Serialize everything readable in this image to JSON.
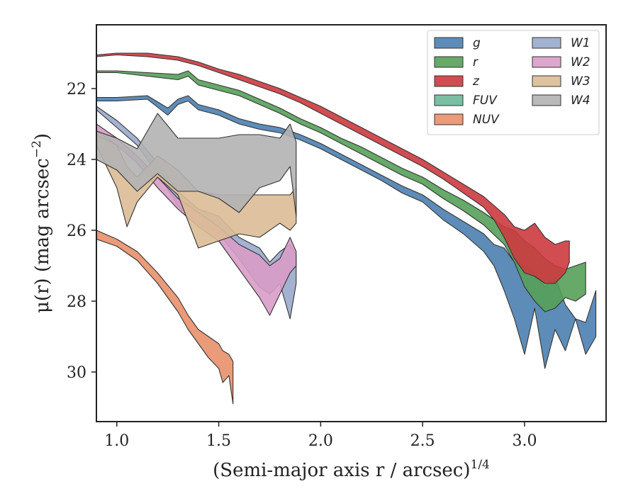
{
  "chart_data": {
    "type": "area",
    "title": "",
    "xlabel": "(Semi-major axis r / arcsec)",
    "xlabel_sup": "1/4",
    "ylabel": "μ(r) (mag arcsec",
    "ylabel_sup": "−2",
    "ylabel_tail": ")",
    "xlim": [
      0.9,
      3.4
    ],
    "ylim": [
      31.4,
      20.2
    ],
    "y_inverted": true,
    "grid": false,
    "legend": "top-right",
    "xticks": [
      1.0,
      1.5,
      2.0,
      2.5,
      3.0
    ],
    "xtick_labels": [
      "1.0",
      "1.5",
      "2.0",
      "2.5",
      "3.0"
    ],
    "yticks": [
      22,
      24,
      26,
      28,
      30
    ],
    "ytick_labels": [
      "22",
      "24",
      "26",
      "28",
      "30"
    ],
    "series": [
      {
        "name": "g",
        "color": "#4c7fb0",
        "x": [
          0.9,
          1.0,
          1.15,
          1.25,
          1.3,
          1.35,
          1.4,
          1.5,
          1.6,
          1.7,
          1.8,
          1.9,
          2.0,
          2.1,
          2.2,
          2.3,
          2.4,
          2.5,
          2.6,
          2.7,
          2.8,
          2.85,
          2.9,
          2.95,
          3.0,
          3.05,
          3.1,
          3.15,
          3.2,
          3.25,
          3.3,
          3.35
        ],
        "y1": [
          22.25,
          22.25,
          22.2,
          22.55,
          22.3,
          22.2,
          22.45,
          22.6,
          22.85,
          23.0,
          23.1,
          23.3,
          23.55,
          23.85,
          24.15,
          24.45,
          24.75,
          25.0,
          25.4,
          25.75,
          26.1,
          26.4,
          26.5,
          26.9,
          27.0,
          27.2,
          27.6,
          27.3,
          28.1,
          28.5,
          28.6,
          27.7
        ],
        "y2": [
          22.35,
          22.35,
          22.3,
          22.75,
          22.45,
          22.35,
          22.6,
          22.75,
          23.0,
          23.15,
          23.25,
          23.45,
          23.7,
          24.0,
          24.3,
          24.6,
          24.95,
          25.2,
          25.7,
          26.1,
          26.6,
          27.0,
          27.7,
          28.5,
          29.5,
          28.2,
          29.9,
          28.8,
          29.4,
          28.5,
          29.5,
          29.0
        ]
      },
      {
        "name": "r",
        "color": "#55a059",
        "x": [
          0.9,
          1.0,
          1.15,
          1.3,
          1.35,
          1.4,
          1.5,
          1.6,
          1.7,
          1.8,
          1.9,
          2.0,
          2.1,
          2.2,
          2.3,
          2.4,
          2.5,
          2.6,
          2.7,
          2.8,
          2.9,
          2.95,
          3.0,
          3.05,
          3.1,
          3.15,
          3.2,
          3.25,
          3.3
        ],
        "y1": [
          21.5,
          21.5,
          21.55,
          21.6,
          21.5,
          21.75,
          21.9,
          22.05,
          22.3,
          22.55,
          22.85,
          23.1,
          23.4,
          23.65,
          23.95,
          24.25,
          24.5,
          24.85,
          25.15,
          25.5,
          25.9,
          26.0,
          26.3,
          26.5,
          26.8,
          27.0,
          27.1,
          27.0,
          26.9
        ],
        "y2": [
          21.55,
          21.55,
          21.65,
          21.75,
          21.65,
          21.9,
          22.05,
          22.2,
          22.45,
          22.7,
          23.0,
          23.25,
          23.55,
          23.85,
          24.15,
          24.45,
          24.7,
          25.1,
          25.45,
          25.85,
          26.4,
          26.9,
          27.6,
          28.0,
          28.3,
          28.2,
          27.9,
          28.0,
          27.8
        ]
      },
      {
        "name": "z",
        "color": "#cc3a3f",
        "x": [
          0.9,
          1.0,
          1.15,
          1.3,
          1.4,
          1.5,
          1.6,
          1.7,
          1.8,
          1.9,
          2.0,
          2.1,
          2.2,
          2.3,
          2.4,
          2.5,
          2.6,
          2.7,
          2.8,
          2.85,
          2.9,
          2.95,
          3.0,
          3.05,
          3.1,
          3.15,
          3.2,
          3.22
        ],
        "y1": [
          21.05,
          21.0,
          21.0,
          21.1,
          21.25,
          21.45,
          21.6,
          21.8,
          22.0,
          22.25,
          22.5,
          22.8,
          23.1,
          23.4,
          23.7,
          24.0,
          24.35,
          24.7,
          25.05,
          25.3,
          25.55,
          25.9,
          26.0,
          25.8,
          26.2,
          26.4,
          26.3,
          26.3
        ],
        "y2": [
          21.1,
          21.05,
          21.1,
          21.2,
          21.35,
          21.55,
          21.75,
          21.95,
          22.15,
          22.4,
          22.7,
          23.0,
          23.3,
          23.6,
          23.9,
          24.2,
          24.55,
          24.95,
          25.35,
          25.7,
          26.2,
          26.8,
          27.2,
          27.3,
          27.5,
          27.5,
          27.2,
          26.9
        ]
      },
      {
        "name": "FUV",
        "color": "#6bb89a",
        "x": [],
        "y1": [],
        "y2": []
      },
      {
        "name": "NUV",
        "color": "#e8906a",
        "x": [
          0.9,
          1.0,
          1.1,
          1.2,
          1.3,
          1.35,
          1.4,
          1.45,
          1.5,
          1.52,
          1.55,
          1.57
        ],
        "y1": [
          26.0,
          26.25,
          26.6,
          27.2,
          27.9,
          28.4,
          28.8,
          29.0,
          29.2,
          29.4,
          29.5,
          29.7
        ],
        "y2": [
          26.25,
          26.45,
          26.85,
          27.5,
          28.3,
          28.8,
          29.2,
          29.6,
          29.9,
          30.3,
          30.1,
          30.9
        ]
      },
      {
        "name": "W1",
        "color": "#9aaacc",
        "x": [
          0.9,
          1.0,
          1.1,
          1.2,
          1.3,
          1.4,
          1.5,
          1.6,
          1.7,
          1.75,
          1.8,
          1.85,
          1.88
        ],
        "y1": [
          22.5,
          22.9,
          23.4,
          24.1,
          24.9,
          25.4,
          25.6,
          26.2,
          26.5,
          26.9,
          26.6,
          26.4,
          26.7
        ],
        "y2": [
          22.6,
          23.1,
          23.6,
          24.4,
          25.3,
          25.8,
          26.1,
          26.8,
          27.6,
          27.8,
          27.5,
          28.5,
          27.5
        ]
      },
      {
        "name": "W2",
        "color": "#d89cc8",
        "x": [
          0.9,
          1.0,
          1.1,
          1.2,
          1.3,
          1.4,
          1.5,
          1.6,
          1.7,
          1.75,
          1.8,
          1.85,
          1.88
        ],
        "y1": [
          23.0,
          23.4,
          23.9,
          24.5,
          25.1,
          25.5,
          25.9,
          26.4,
          26.7,
          27.0,
          26.8,
          26.2,
          26.6
        ],
        "y2": [
          23.2,
          23.6,
          24.1,
          24.8,
          25.4,
          25.9,
          26.3,
          27.1,
          27.9,
          28.4,
          27.8,
          27.2,
          27.0
        ]
      },
      {
        "name": "W3",
        "color": "#dbbd96",
        "x": [
          0.9,
          1.0,
          1.05,
          1.1,
          1.2,
          1.3,
          1.4,
          1.5,
          1.6,
          1.7,
          1.8,
          1.85,
          1.88
        ],
        "y1": [
          23.3,
          23.6,
          24.2,
          24.5,
          23.9,
          24.3,
          24.9,
          25.0,
          25.0,
          25.0,
          25.0,
          25.0,
          24.8
        ],
        "y2": [
          23.6,
          24.8,
          25.9,
          25.2,
          24.5,
          25.0,
          26.5,
          26.3,
          26.1,
          26.2,
          25.8,
          26.0,
          25.8
        ]
      },
      {
        "name": "W4",
        "color": "#b2b2b2",
        "x": [
          0.9,
          1.0,
          1.1,
          1.2,
          1.3,
          1.4,
          1.5,
          1.6,
          1.7,
          1.8,
          1.85,
          1.88
        ],
        "y1": [
          23.2,
          23.4,
          23.7,
          22.7,
          23.4,
          23.4,
          23.4,
          23.3,
          23.3,
          23.4,
          23.0,
          23.5
        ],
        "y2": [
          24.0,
          24.3,
          24.9,
          24.4,
          24.9,
          24.9,
          25.1,
          25.5,
          24.8,
          24.6,
          24.2,
          25.6
        ]
      }
    ]
  }
}
